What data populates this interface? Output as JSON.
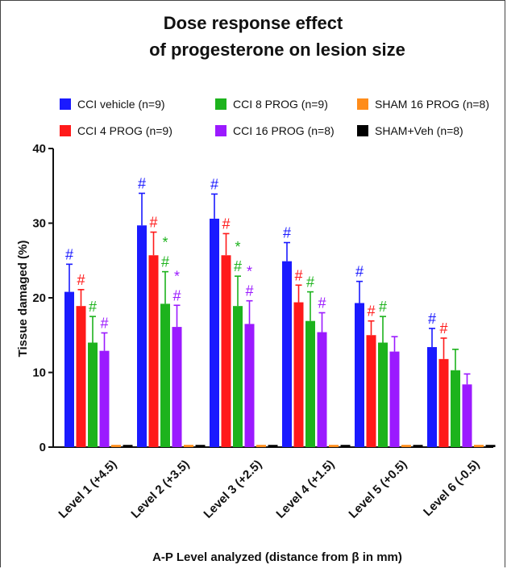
{
  "chart_data": {
    "type": "bar",
    "title": [
      "Dose response effect",
      "of progesterone on lesion size"
    ],
    "ylabel": "Tissue damaged (%)",
    "xlabel": "A-P Level analyzed  (distance from β in mm)",
    "ylim": [
      0,
      40
    ],
    "yticks": [
      0,
      10,
      20,
      30,
      40
    ],
    "grid": false,
    "legend_position": "top",
    "categories": [
      "Level 1   (+4.5)",
      "Level 2   (+3.5)",
      "Level 3   (+2.5)",
      "Level 4   (+1.5)",
      "Level 5   (+0.5)",
      "Level 6    (-0.5)"
    ],
    "series": [
      {
        "name": "CCI vehicle (n=9)",
        "color": "#1a1aff",
        "values": [
          20.8,
          29.7,
          30.6,
          24.9,
          19.3,
          13.4
        ],
        "errors": [
          3.7,
          4.3,
          3.3,
          2.5,
          2.9,
          2.5
        ],
        "marks": [
          [
            "#"
          ],
          [
            "#"
          ],
          [
            "#"
          ],
          [
            "#"
          ],
          [
            "#"
          ],
          [
            "#"
          ]
        ]
      },
      {
        "name": "CCI 4 PROG (n=9)",
        "color": "#ff1a1a",
        "values": [
          18.9,
          25.7,
          25.7,
          19.4,
          15.0,
          11.8
        ],
        "errors": [
          2.2,
          3.1,
          2.9,
          2.3,
          1.9,
          2.8
        ],
        "marks": [
          [
            "#"
          ],
          [
            "#"
          ],
          [
            "#"
          ],
          [
            "#"
          ],
          [
            "#"
          ],
          [
            "#"
          ]
        ]
      },
      {
        "name": "CCI 8 PROG (n=9)",
        "color": "#1db31d",
        "values": [
          14.0,
          19.2,
          18.9,
          16.9,
          14.0,
          10.3
        ],
        "errors": [
          3.5,
          4.3,
          4.0,
          3.9,
          3.5,
          2.8
        ],
        "marks": [
          [
            "#"
          ],
          [
            "#",
            "*"
          ],
          [
            "#",
            "*"
          ],
          [
            "#"
          ],
          [
            "#"
          ],
          []
        ]
      },
      {
        "name": "CCI 16 PROG (n=8)",
        "color": "#9b1aff",
        "values": [
          12.9,
          16.1,
          16.5,
          15.4,
          12.8,
          8.4
        ],
        "errors": [
          2.4,
          2.9,
          3.1,
          2.6,
          2.0,
          1.4
        ],
        "marks": [
          [
            "#"
          ],
          [
            "#",
            "*"
          ],
          [
            "#",
            "*"
          ],
          [
            "#"
          ],
          [],
          []
        ]
      },
      {
        "name": "SHAM 16 PROG (n=8)",
        "color": "#ff8c1a",
        "values": [
          0.3,
          0.3,
          0.3,
          0.3,
          0.3,
          0.3
        ],
        "errors": [
          0,
          0,
          0,
          0,
          0,
          0
        ],
        "marks": [
          [],
          [],
          [],
          [],
          [],
          []
        ]
      },
      {
        "name": "SHAM+Veh (n=8)",
        "color": "#000000",
        "values": [
          0.3,
          0.3,
          0.3,
          0.3,
          0.3,
          0.3
        ],
        "errors": [
          0,
          0,
          0,
          0,
          0,
          0
        ],
        "marks": [
          [],
          [],
          [],
          [],
          [],
          []
        ]
      }
    ]
  }
}
